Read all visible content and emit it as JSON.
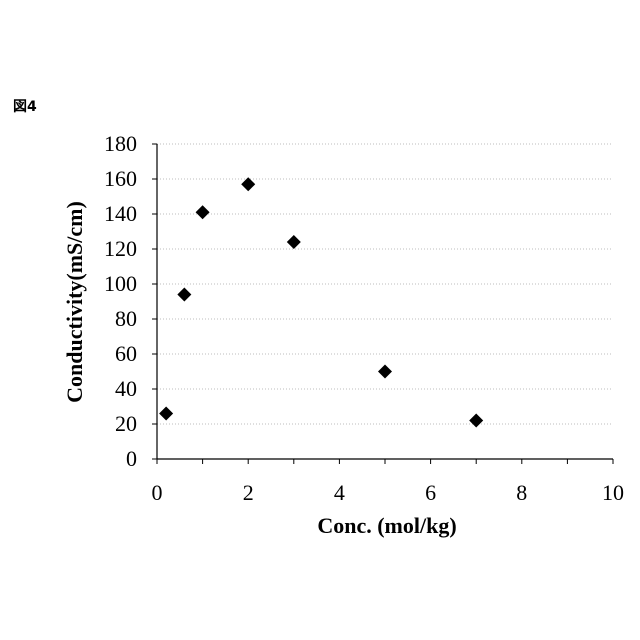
{
  "figure_label": "図4",
  "chart_data": {
    "type": "scatter",
    "title": "",
    "xlabel": "Conc. (mol/kg)",
    "ylabel": "Conductivity(mS/cm)",
    "xlim": [
      0,
      10
    ],
    "ylim": [
      0,
      180
    ],
    "xticks": [
      0,
      2,
      4,
      6,
      8,
      10
    ],
    "yticks": [
      0,
      20,
      40,
      60,
      80,
      100,
      120,
      140,
      160,
      180
    ],
    "grid": "horizontal-dotted",
    "legend": "none",
    "marker": "diamond",
    "marker_color": "#000000",
    "series": [
      {
        "x": [
          0.2,
          0.6,
          1.0,
          2.0,
          3.0,
          5.0,
          7.0
        ],
        "y": [
          26,
          94,
          141,
          157,
          124,
          50,
          22
        ]
      }
    ]
  }
}
